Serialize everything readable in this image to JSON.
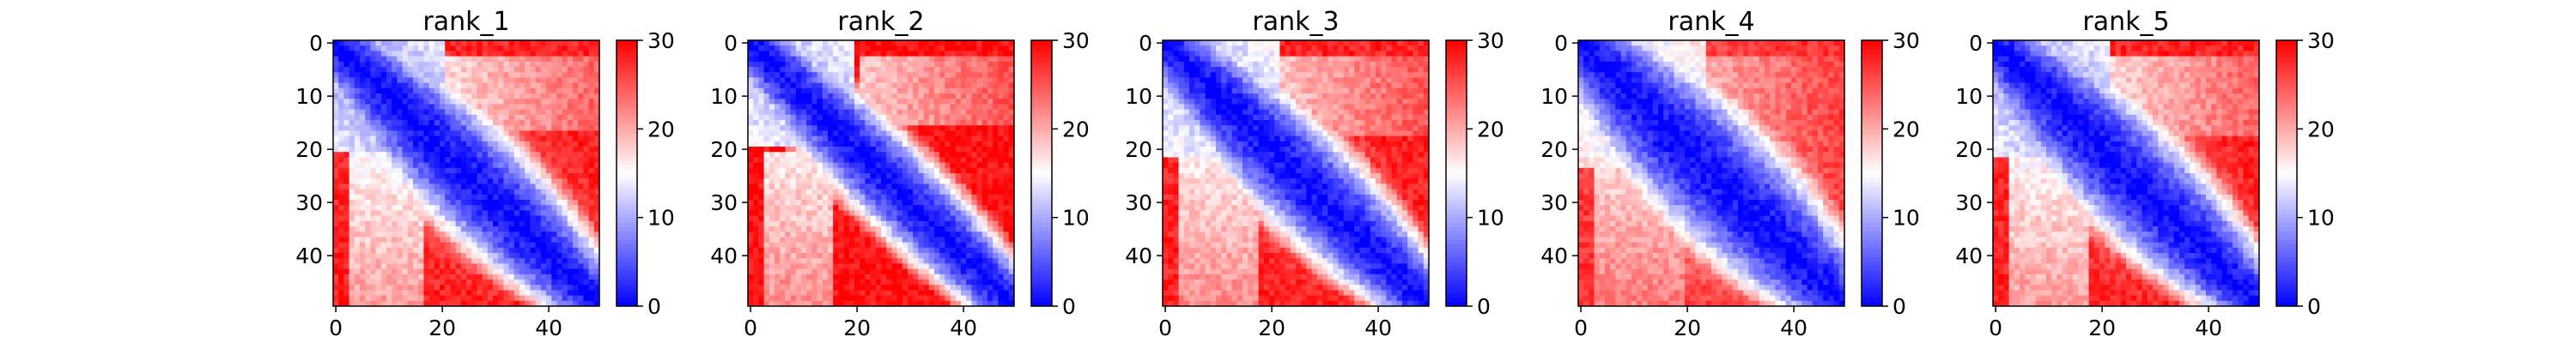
{
  "chart_data": [
    {
      "type": "heatmap",
      "title": "rank_1",
      "rows": 50,
      "cols": 50,
      "x_ticks": [
        0,
        20,
        40
      ],
      "y_ticks": [
        0,
        10,
        20,
        30,
        40
      ],
      "colorbar": {
        "min": 0,
        "max": 30,
        "ticks": [
          0,
          10,
          20,
          30
        ],
        "colormap": "bwr"
      },
      "diagonal_band_width": [
        3,
        10
      ],
      "low_block": {
        "end": 17,
        "value": 9
      },
      "far_value": 28
    },
    {
      "type": "heatmap",
      "title": "rank_2",
      "rows": 50,
      "cols": 50,
      "x_ticks": [
        0,
        20,
        40
      ],
      "y_ticks": [
        0,
        10,
        20,
        30,
        40
      ],
      "colorbar": {
        "min": 0,
        "max": 30,
        "ticks": [
          0,
          10,
          20,
          30
        ],
        "colormap": "bwr"
      },
      "diagonal_band_width": [
        3,
        6
      ],
      "low_block": {
        "end": 16,
        "value": 10
      },
      "far_value": 29
    },
    {
      "type": "heatmap",
      "title": "rank_3",
      "rows": 50,
      "cols": 50,
      "x_ticks": [
        0,
        20,
        40
      ],
      "y_ticks": [
        0,
        10,
        20,
        30,
        40
      ],
      "colorbar": {
        "min": 0,
        "max": 30,
        "ticks": [
          0,
          10,
          20,
          30
        ],
        "colormap": "bwr"
      },
      "diagonal_band_width": [
        3,
        9
      ],
      "low_block": {
        "end": 18,
        "value": 10
      },
      "far_value": 28
    },
    {
      "type": "heatmap",
      "title": "rank_4",
      "rows": 50,
      "cols": 50,
      "x_ticks": [
        0,
        20,
        40
      ],
      "y_ticks": [
        0,
        10,
        20,
        30,
        40
      ],
      "colorbar": {
        "min": 0,
        "max": 30,
        "ticks": [
          0,
          10,
          20,
          30
        ],
        "colormap": "bwr"
      },
      "diagonal_band_width": [
        4,
        14
      ],
      "low_block": {
        "end": 20,
        "value": 11
      },
      "far_value": 27
    },
    {
      "type": "heatmap",
      "title": "rank_5",
      "rows": 50,
      "cols": 50,
      "x_ticks": [
        0,
        20,
        40
      ],
      "y_ticks": [
        0,
        10,
        20,
        30,
        40
      ],
      "colorbar": {
        "min": 0,
        "max": 30,
        "ticks": [
          0,
          10,
          20,
          30
        ],
        "colormap": "bwr"
      },
      "diagonal_band_width": [
        3,
        11
      ],
      "low_block": {
        "end": 18,
        "value": 9
      },
      "far_value": 28
    }
  ]
}
